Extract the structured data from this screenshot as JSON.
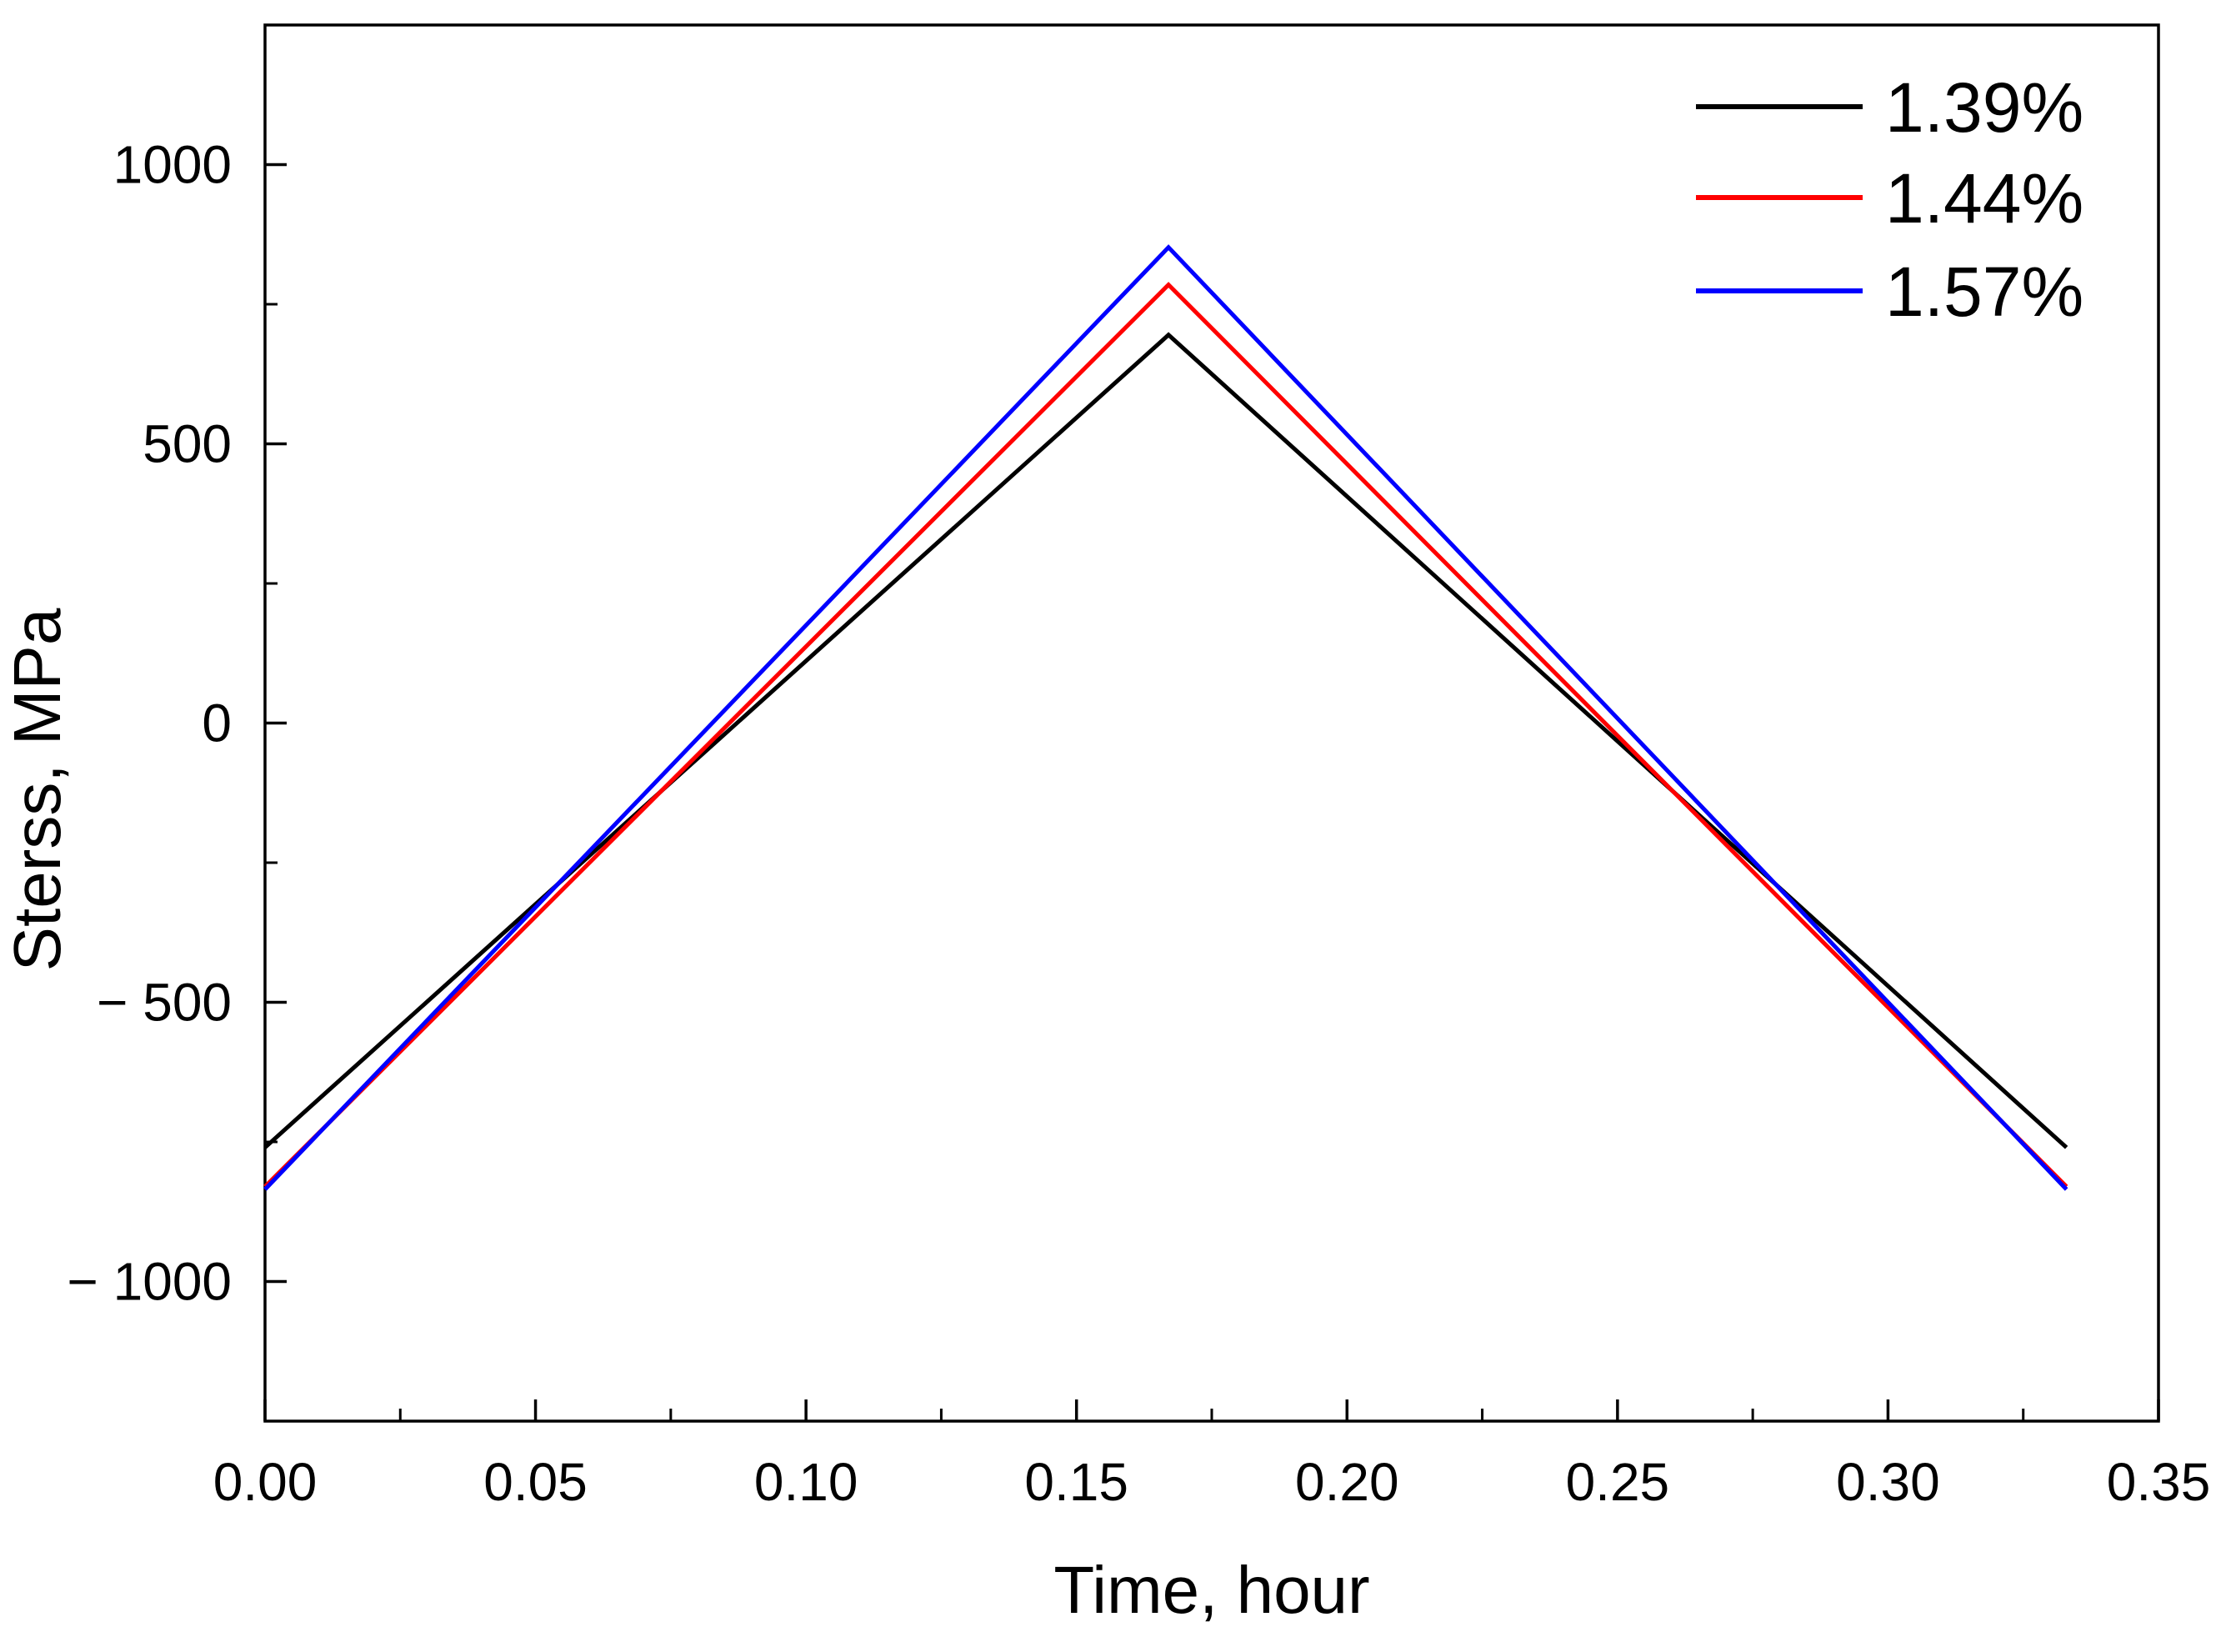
{
  "chart_data": {
    "type": "line",
    "title": "",
    "xlabel": "Time, hour",
    "ylabel": "Sterss, MPa",
    "xlim": [
      0.0,
      0.35
    ],
    "ylim": [
      -1250,
      1250
    ],
    "x_ticks": [
      0.0,
      0.05,
      0.1,
      0.15,
      0.2,
      0.25,
      0.3,
      0.35
    ],
    "x_tick_labels": [
      "0.00",
      "0.05",
      "0.10",
      "0.15",
      "0.20",
      "0.25",
      "0.30",
      "0.35"
    ],
    "x_minor_ticks": [
      0.025,
      0.075,
      0.125,
      0.175,
      0.225,
      0.275,
      0.325
    ],
    "y_ticks": [
      -1000,
      -500,
      0,
      500,
      1000
    ],
    "y_tick_labels": [
      "− 1000",
      "− 500",
      "0",
      "500",
      "1000"
    ],
    "y_minor_ticks": [
      -750,
      -250,
      250,
      750
    ],
    "grid": false,
    "legend_position": "top-right",
    "series": [
      {
        "name": "1.39%",
        "color": "#000000",
        "x": [
          0.0,
          0.167,
          0.333
        ],
        "y": [
          -760,
          695,
          -760
        ]
      },
      {
        "name": "1.44%",
        "color": "#ff0000",
        "x": [
          0.0,
          0.167,
          0.333
        ],
        "y": [
          -830,
          785,
          -830
        ]
      },
      {
        "name": "1.57%",
        "color": "#0000ff",
        "x": [
          0.0,
          0.167,
          0.333
        ],
        "y": [
          -835,
          852,
          -835
        ]
      }
    ]
  }
}
